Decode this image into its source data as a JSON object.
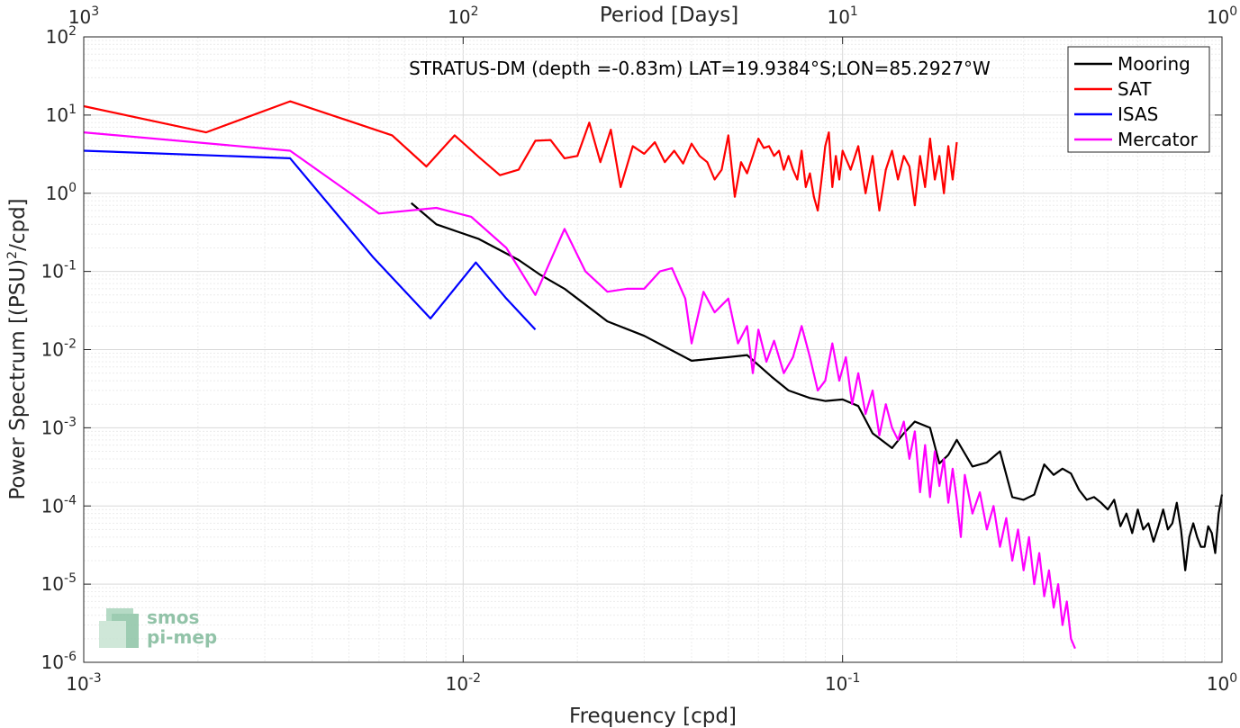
{
  "chart_data": {
    "type": "line",
    "title": "",
    "annotation": "STRATUS-DM (depth =-0.83m) LAT=19.9384°S;LON=85.2927°W",
    "xlabel": "Frequency [cpd]",
    "ylabel": "Power Spectrum [(PSU)²/cpd]",
    "ylabel_base": "Power Spectrum [(PSU)",
    "ylabel_sup": "2",
    "ylabel_tail": "/cpd]",
    "top_xlabel": "Period [Days]",
    "xscale": "log",
    "yscale": "log",
    "xlim": [
      0.001,
      1
    ],
    "ylim": [
      1e-06,
      100
    ],
    "grid": true,
    "legend_position": "top-right",
    "x_ticks": [
      {
        "value": 0.001,
        "base": "10",
        "exp": "-3"
      },
      {
        "value": 0.01,
        "base": "10",
        "exp": "-2"
      },
      {
        "value": 0.1,
        "base": "10",
        "exp": "-1"
      },
      {
        "value": 1,
        "base": "10",
        "exp": "0"
      }
    ],
    "y_ticks": [
      {
        "value": 1e-06,
        "base": "10",
        "exp": "-6"
      },
      {
        "value": 1e-05,
        "base": "10",
        "exp": "-5"
      },
      {
        "value": 0.0001,
        "base": "10",
        "exp": "-4"
      },
      {
        "value": 0.001,
        "base": "10",
        "exp": "-3"
      },
      {
        "value": 0.01,
        "base": "10",
        "exp": "-2"
      },
      {
        "value": 0.1,
        "base": "10",
        "exp": "-1"
      },
      {
        "value": 1,
        "base": "10",
        "exp": "0"
      },
      {
        "value": 10,
        "base": "10",
        "exp": "1"
      },
      {
        "value": 100,
        "base": "10",
        "exp": "2"
      }
    ],
    "top_ticks": [
      {
        "value": 0.001,
        "base": "10",
        "exp": "3"
      },
      {
        "value": 0.01,
        "base": "10",
        "exp": "2"
      },
      {
        "value": 0.1,
        "base": "10",
        "exp": "1"
      },
      {
        "value": 1,
        "base": "10",
        "exp": "0"
      }
    ],
    "series": [
      {
        "name": "Mooring",
        "color": "#000000",
        "points": [
          [
            0.0073,
            0.75
          ],
          [
            0.0085,
            0.4
          ],
          [
            0.011,
            0.26
          ],
          [
            0.014,
            0.14
          ],
          [
            0.016,
            0.09
          ],
          [
            0.0185,
            0.06
          ],
          [
            0.024,
            0.023
          ],
          [
            0.03,
            0.015
          ],
          [
            0.04,
            0.0072
          ],
          [
            0.05,
            0.008
          ],
          [
            0.056,
            0.0085
          ],
          [
            0.065,
            0.0045
          ],
          [
            0.072,
            0.003
          ],
          [
            0.082,
            0.0024
          ],
          [
            0.09,
            0.0022
          ],
          [
            0.1,
            0.0023
          ],
          [
            0.11,
            0.0019
          ],
          [
            0.12,
            0.00085
          ],
          [
            0.135,
            0.00055
          ],
          [
            0.145,
            0.00085
          ],
          [
            0.155,
            0.0012
          ],
          [
            0.17,
            0.001
          ],
          [
            0.18,
            0.00035
          ],
          [
            0.19,
            0.00045
          ],
          [
            0.2,
            0.0007
          ],
          [
            0.22,
            0.00032
          ],
          [
            0.24,
            0.00036
          ],
          [
            0.26,
            0.0005
          ],
          [
            0.28,
            0.00013
          ],
          [
            0.3,
            0.00012
          ],
          [
            0.32,
            0.00014
          ],
          [
            0.34,
            0.00034
          ],
          [
            0.36,
            0.00025
          ],
          [
            0.38,
            0.0003
          ],
          [
            0.4,
            0.00026
          ],
          [
            0.42,
            0.00016
          ],
          [
            0.44,
            0.00012
          ],
          [
            0.46,
            0.00013
          ],
          [
            0.48,
            0.00011
          ],
          [
            0.5,
            9e-05
          ],
          [
            0.52,
            0.00012
          ],
          [
            0.54,
            5.5e-05
          ],
          [
            0.56,
            8e-05
          ],
          [
            0.58,
            4.5e-05
          ],
          [
            0.6,
            9e-05
          ],
          [
            0.62,
            5e-05
          ],
          [
            0.64,
            6e-05
          ],
          [
            0.66,
            3.5e-05
          ],
          [
            0.68,
            5.5e-05
          ],
          [
            0.7,
            9e-05
          ],
          [
            0.72,
            5e-05
          ],
          [
            0.74,
            6e-05
          ],
          [
            0.76,
            0.00011
          ],
          [
            0.78,
            5e-05
          ],
          [
            0.8,
            1.5e-05
          ],
          [
            0.82,
            4e-05
          ],
          [
            0.84,
            6e-05
          ],
          [
            0.86,
            4e-05
          ],
          [
            0.88,
            3e-05
          ],
          [
            0.9,
            3e-05
          ],
          [
            0.92,
            5.5e-05
          ],
          [
            0.94,
            4.5e-05
          ],
          [
            0.96,
            2.5e-05
          ],
          [
            0.98,
            8e-05
          ],
          [
            1.0,
            0.00014
          ]
        ]
      },
      {
        "name": "SAT",
        "color": "#ff0000",
        "points": [
          [
            0.001,
            13
          ],
          [
            0.0021,
            6.0
          ],
          [
            0.0035,
            15
          ],
          [
            0.0065,
            5.5
          ],
          [
            0.008,
            2.2
          ],
          [
            0.0095,
            5.5
          ],
          [
            0.011,
            2.9
          ],
          [
            0.0125,
            1.7
          ],
          [
            0.014,
            2.0
          ],
          [
            0.0155,
            4.7
          ],
          [
            0.017,
            4.8
          ],
          [
            0.0185,
            2.8
          ],
          [
            0.02,
            3.0
          ],
          [
            0.0215,
            8.0
          ],
          [
            0.023,
            2.5
          ],
          [
            0.0245,
            6.5
          ],
          [
            0.026,
            1.2
          ],
          [
            0.028,
            4.0
          ],
          [
            0.03,
            3.2
          ],
          [
            0.032,
            4.5
          ],
          [
            0.034,
            2.5
          ],
          [
            0.036,
            3.5
          ],
          [
            0.038,
            2.4
          ],
          [
            0.04,
            4.3
          ],
          [
            0.042,
            3.0
          ],
          [
            0.044,
            2.5
          ],
          [
            0.046,
            1.5
          ],
          [
            0.048,
            2.0
          ],
          [
            0.05,
            5.5
          ],
          [
            0.052,
            0.9
          ],
          [
            0.054,
            2.5
          ],
          [
            0.056,
            1.8
          ],
          [
            0.058,
            3.0
          ],
          [
            0.06,
            5.0
          ],
          [
            0.062,
            3.8
          ],
          [
            0.064,
            4.0
          ],
          [
            0.066,
            3.0
          ],
          [
            0.068,
            3.5
          ],
          [
            0.07,
            2.0
          ],
          [
            0.072,
            3.0
          ],
          [
            0.074,
            2.0
          ],
          [
            0.076,
            1.5
          ],
          [
            0.078,
            3.5
          ],
          [
            0.08,
            1.2
          ],
          [
            0.082,
            1.8
          ],
          [
            0.084,
            0.9
          ],
          [
            0.086,
            0.6
          ],
          [
            0.088,
            1.5
          ],
          [
            0.09,
            4.0
          ],
          [
            0.092,
            6.0
          ],
          [
            0.094,
            1.2
          ],
          [
            0.096,
            3.0
          ],
          [
            0.098,
            1.5
          ],
          [
            0.1,
            3.5
          ],
          [
            0.105,
            2.0
          ],
          [
            0.11,
            4.0
          ],
          [
            0.115,
            1.0
          ],
          [
            0.12,
            3.0
          ],
          [
            0.125,
            0.6
          ],
          [
            0.13,
            2.0
          ],
          [
            0.135,
            3.5
          ],
          [
            0.14,
            1.5
          ],
          [
            0.145,
            3.0
          ],
          [
            0.15,
            2.2
          ],
          [
            0.155,
            0.7
          ],
          [
            0.16,
            3.0
          ],
          [
            0.165,
            1.2
          ],
          [
            0.17,
            5.0
          ],
          [
            0.175,
            1.5
          ],
          [
            0.18,
            3.0
          ],
          [
            0.185,
            1.0
          ],
          [
            0.19,
            4.0
          ],
          [
            0.195,
            1.5
          ],
          [
            0.2,
            4.5
          ]
        ]
      },
      {
        "name": "ISAS",
        "color": "#0000ff",
        "points": [
          [
            0.001,
            3.5
          ],
          [
            0.0035,
            2.8
          ],
          [
            0.0058,
            0.15
          ],
          [
            0.0082,
            0.025
          ],
          [
            0.0108,
            0.13
          ],
          [
            0.013,
            0.045
          ],
          [
            0.0155,
            0.018
          ]
        ]
      },
      {
        "name": "Mercator",
        "color": "#ff00ff",
        "points": [
          [
            0.001,
            6.0
          ],
          [
            0.0035,
            3.5
          ],
          [
            0.006,
            0.55
          ],
          [
            0.0085,
            0.65
          ],
          [
            0.0105,
            0.5
          ],
          [
            0.013,
            0.2
          ],
          [
            0.0155,
            0.05
          ],
          [
            0.0185,
            0.35
          ],
          [
            0.021,
            0.1
          ],
          [
            0.024,
            0.055
          ],
          [
            0.027,
            0.06
          ],
          [
            0.03,
            0.06
          ],
          [
            0.033,
            0.1
          ],
          [
            0.0355,
            0.11
          ],
          [
            0.0385,
            0.045
          ],
          [
            0.04,
            0.012
          ],
          [
            0.043,
            0.055
          ],
          [
            0.046,
            0.03
          ],
          [
            0.05,
            0.045
          ],
          [
            0.053,
            0.012
          ],
          [
            0.056,
            0.02
          ],
          [
            0.058,
            0.005
          ],
          [
            0.06,
            0.018
          ],
          [
            0.063,
            0.007
          ],
          [
            0.066,
            0.013
          ],
          [
            0.07,
            0.005
          ],
          [
            0.074,
            0.008
          ],
          [
            0.078,
            0.02
          ],
          [
            0.082,
            0.008
          ],
          [
            0.086,
            0.003
          ],
          [
            0.09,
            0.004
          ],
          [
            0.094,
            0.012
          ],
          [
            0.098,
            0.004
          ],
          [
            0.102,
            0.008
          ],
          [
            0.106,
            0.002
          ],
          [
            0.11,
            0.005
          ],
          [
            0.115,
            0.0015
          ],
          [
            0.12,
            0.003
          ],
          [
            0.125,
            0.0008
          ],
          [
            0.13,
            0.002
          ],
          [
            0.135,
            0.001
          ],
          [
            0.14,
            0.0007
          ],
          [
            0.145,
            0.0012
          ],
          [
            0.15,
            0.0004
          ],
          [
            0.155,
            0.0009
          ],
          [
            0.16,
            0.00015
          ],
          [
            0.165,
            0.0006
          ],
          [
            0.17,
            0.00013
          ],
          [
            0.175,
            0.0005
          ],
          [
            0.18,
            0.00018
          ],
          [
            0.185,
            0.0004
          ],
          [
            0.19,
            0.00011
          ],
          [
            0.195,
            0.0003
          ],
          [
            0.2,
            0.00012
          ],
          [
            0.205,
            4e-05
          ],
          [
            0.21,
            0.00025
          ],
          [
            0.22,
            8e-05
          ],
          [
            0.23,
            0.00015
          ],
          [
            0.24,
            5e-05
          ],
          [
            0.25,
            0.0001
          ],
          [
            0.26,
            3e-05
          ],
          [
            0.27,
            7e-05
          ],
          [
            0.28,
            2e-05
          ],
          [
            0.29,
            5e-05
          ],
          [
            0.3,
            1.5e-05
          ],
          [
            0.31,
            4e-05
          ],
          [
            0.32,
            1e-05
          ],
          [
            0.33,
            2.5e-05
          ],
          [
            0.34,
            7e-06
          ],
          [
            0.35,
            1.5e-05
          ],
          [
            0.36,
            5e-06
          ],
          [
            0.37,
            1e-05
          ],
          [
            0.38,
            3e-06
          ],
          [
            0.39,
            6e-06
          ],
          [
            0.4,
            2e-06
          ],
          [
            0.41,
            1.5e-06
          ]
        ]
      }
    ]
  },
  "logo": {
    "line1": "smos",
    "line2": "pi-mep"
  }
}
